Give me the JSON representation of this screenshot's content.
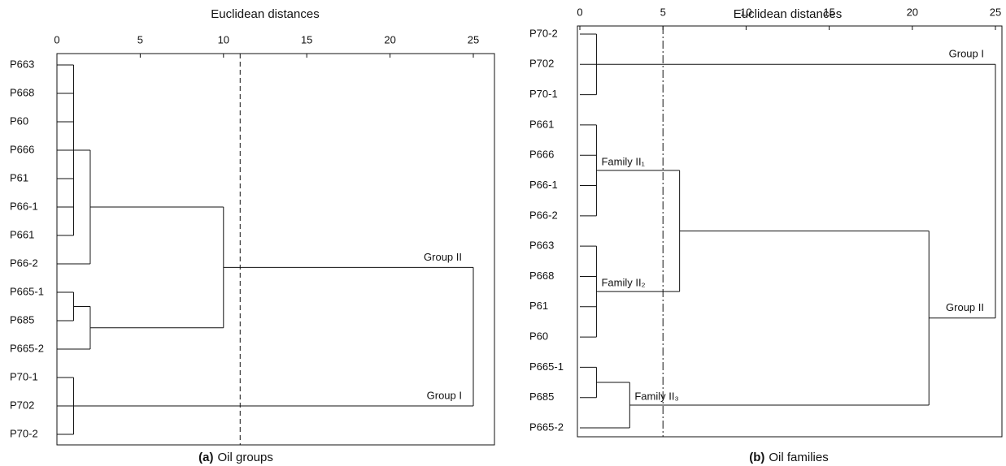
{
  "chart_data": [
    {
      "type": "dendrogram",
      "xlabel": "Euclidean distances",
      "caption_label": "(a)",
      "caption": "Oil groups",
      "xlim": [
        0,
        25
      ],
      "xticks": [
        0,
        5,
        10,
        15,
        20,
        25
      ],
      "threshold": 11,
      "threshold_style": "dashed",
      "tree": {
        "height": 25,
        "children": [
          {
            "height": 10,
            "label": "Group II",
            "children": [
              {
                "height": 2,
                "children": [
                  {
                    "height": 1,
                    "children": [
                      "P663",
                      "P668",
                      "P60",
                      "P666",
                      "P61",
                      "P66-1",
                      "P661"
                    ]
                  },
                  "P66-2"
                ]
              },
              {
                "height": 2,
                "children": [
                  {
                    "height": 1,
                    "children": [
                      "P665-1",
                      "P685"
                    ]
                  },
                  "P665-2"
                ]
              }
            ]
          },
          {
            "height": 1,
            "label": "Group I",
            "children": [
              "P70-1",
              "P702",
              "P70-2"
            ]
          }
        ]
      }
    },
    {
      "type": "dendrogram",
      "xlabel": "Euclidean distances",
      "caption_label": "(b)",
      "caption": "Oil families",
      "xlim": [
        0,
        25
      ],
      "xticks": [
        0,
        5,
        10,
        15,
        20,
        25
      ],
      "threshold": 5,
      "threshold_style": "dashdot",
      "tree": {
        "height": 25,
        "children": [
          {
            "height": 1,
            "label": "Group I",
            "children": [
              "P70-2",
              "P702",
              "P70-1"
            ]
          },
          {
            "height": 21,
            "label": "Group II",
            "children": [
              {
                "height": 6,
                "children": [
                  {
                    "height": 1,
                    "label": "Family II₁",
                    "children": [
                      "P661",
                      "P666",
                      "P66-1",
                      "P66-2"
                    ]
                  },
                  {
                    "height": 1,
                    "label": "Family II₂",
                    "children": [
                      "P663",
                      "P668",
                      "P61",
                      "P60"
                    ]
                  }
                ]
              },
              {
                "height": 3,
                "label": "Family II₃",
                "children": [
                  {
                    "height": 1,
                    "children": [
                      "P665-1",
                      "P685"
                    ]
                  },
                  "P665-2"
                ]
              }
            ]
          }
        ]
      }
    }
  ]
}
